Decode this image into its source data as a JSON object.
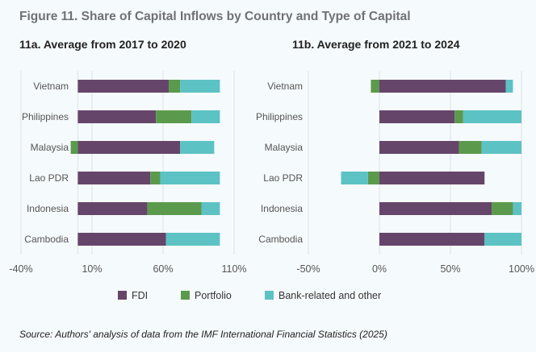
{
  "title": "Figure 11. Share of Capital Inflows by Country and Type of Capital",
  "source": "Source: Authors' analysis of data from the IMF International Financial Statistics (2025)",
  "colors": {
    "FDI": "#66456b",
    "Portfolio": "#5b9a4c",
    "Bank-related and other": "#5cc2c4"
  },
  "legend": [
    "FDI",
    "Portfolio",
    "Bank-related and other"
  ],
  "chart_data": [
    {
      "type": "bar",
      "orientation": "horizontal",
      "stacked": true,
      "title": "11a. Average from 2017 to 2020",
      "categories": [
        "Vietnam",
        "Philippines",
        "Malaysia",
        "Lao PDR",
        "Indonesia",
        "Cambodia"
      ],
      "series": [
        {
          "name": "FDI",
          "values": [
            64,
            55,
            72,
            51,
            49,
            62
          ]
        },
        {
          "name": "Portfolio",
          "values": [
            8,
            25,
            -5,
            7,
            38,
            0
          ]
        },
        {
          "name": "Bank-related and other",
          "values": [
            28,
            20,
            24,
            42,
            13,
            38
          ]
        }
      ],
      "xlim": [
        -40,
        110
      ],
      "xticks": [
        "-40%",
        "10%",
        "60%",
        "110%"
      ],
      "xtick_values": [
        -40,
        10,
        60,
        110
      ],
      "grid": true
    },
    {
      "type": "bar",
      "orientation": "horizontal",
      "stacked": true,
      "title": "11b. Average from 2021 to 2024",
      "categories": [
        "Vietnam",
        "Philippines",
        "Malaysia",
        "Lao PDR",
        "Indonesia",
        "Cambodia"
      ],
      "series": [
        {
          "name": "FDI",
          "values": [
            89,
            53,
            56,
            74,
            79,
            74
          ]
        },
        {
          "name": "Portfolio",
          "values": [
            -6,
            6,
            16,
            -8,
            15,
            0
          ]
        },
        {
          "name": "Bank-related and other",
          "values": [
            5,
            41,
            28,
            -19,
            6,
            26
          ]
        }
      ],
      "xlim": [
        -50,
        100
      ],
      "xticks": [
        "-50%",
        "0%",
        "50%",
        "100%"
      ],
      "xtick_values": [
        -50,
        0,
        50,
        100
      ],
      "grid": true
    }
  ]
}
